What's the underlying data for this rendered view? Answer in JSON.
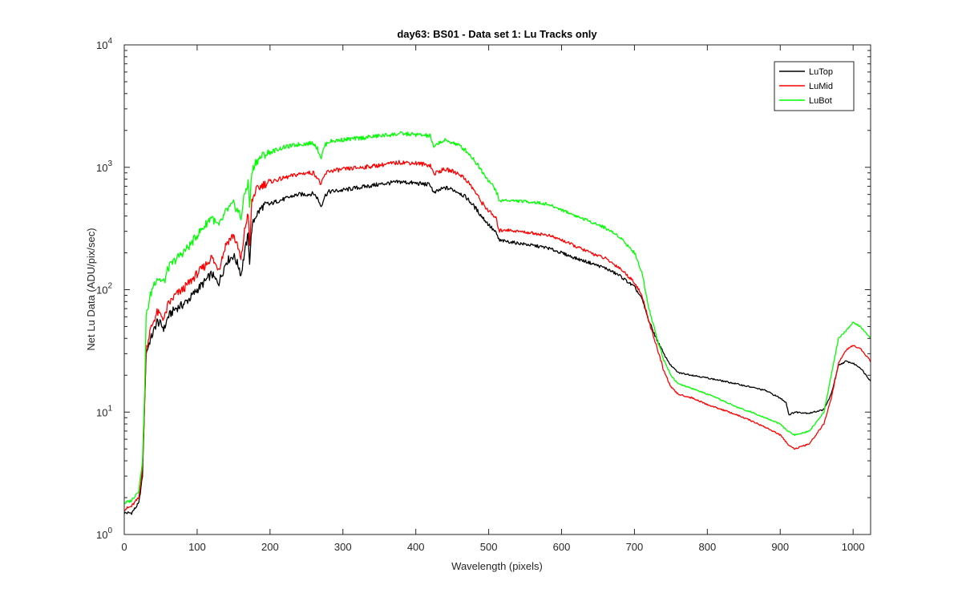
{
  "chart_data": {
    "type": "line",
    "title": "day63: BS01 - Data set 1: Lu Tracks only",
    "xlabel": "Wavelength (pixels)",
    "ylabel": "Net Lu Data (ADU/pix/sec)",
    "xlim": [
      0,
      1024
    ],
    "ylim": [
      1,
      10000
    ],
    "yscale": "log",
    "grid": false,
    "legend_position": "top-right",
    "x_ticks": [
      "0",
      "100",
      "200",
      "300",
      "400",
      "500",
      "600",
      "700",
      "800",
      "900",
      "1000"
    ],
    "y_ticks": [
      {
        "base": "10",
        "exp": "0"
      },
      {
        "base": "10",
        "exp": "1"
      },
      {
        "base": "10",
        "exp": "2"
      },
      {
        "base": "10",
        "exp": "3"
      },
      {
        "base": "10",
        "exp": "4"
      }
    ],
    "series": [
      {
        "name": "LuTop",
        "color": "#000000",
        "points": [
          [
            0,
            1.5
          ],
          [
            10,
            1.5
          ],
          [
            20,
            1.8
          ],
          [
            25,
            3
          ],
          [
            28,
            12
          ],
          [
            30,
            30
          ],
          [
            35,
            38
          ],
          [
            40,
            45
          ],
          [
            45,
            55
          ],
          [
            50,
            52
          ],
          [
            55,
            48
          ],
          [
            60,
            60
          ],
          [
            70,
            70
          ],
          [
            80,
            75
          ],
          [
            90,
            85
          ],
          [
            100,
            100
          ],
          [
            110,
            115
          ],
          [
            120,
            135
          ],
          [
            125,
            120
          ],
          [
            130,
            115
          ],
          [
            140,
            170
          ],
          [
            150,
            190
          ],
          [
            158,
            150
          ],
          [
            160,
            130
          ],
          [
            165,
            200
          ],
          [
            170,
            280
          ],
          [
            172,
            170
          ],
          [
            175,
            320
          ],
          [
            180,
            400
          ],
          [
            190,
            480
          ],
          [
            200,
            500
          ],
          [
            210,
            530
          ],
          [
            220,
            550
          ],
          [
            230,
            580
          ],
          [
            240,
            600
          ],
          [
            250,
            600
          ],
          [
            260,
            610
          ],
          [
            265,
            560
          ],
          [
            270,
            480
          ],
          [
            275,
            580
          ],
          [
            280,
            630
          ],
          [
            300,
            650
          ],
          [
            320,
            680
          ],
          [
            340,
            710
          ],
          [
            360,
            740
          ],
          [
            380,
            760
          ],
          [
            400,
            740
          ],
          [
            420,
            720
          ],
          [
            425,
            610
          ],
          [
            430,
            640
          ],
          [
            440,
            680
          ],
          [
            450,
            660
          ],
          [
            460,
            620
          ],
          [
            470,
            560
          ],
          [
            480,
            480
          ],
          [
            490,
            400
          ],
          [
            500,
            340
          ],
          [
            510,
            290
          ],
          [
            515,
            250
          ],
          [
            520,
            250
          ],
          [
            540,
            240
          ],
          [
            560,
            230
          ],
          [
            580,
            220
          ],
          [
            600,
            200
          ],
          [
            620,
            180
          ],
          [
            640,
            165
          ],
          [
            660,
            150
          ],
          [
            680,
            130
          ],
          [
            700,
            105
          ],
          [
            710,
            85
          ],
          [
            720,
            55
          ],
          [
            730,
            40
          ],
          [
            740,
            30
          ],
          [
            750,
            24
          ],
          [
            760,
            21
          ],
          [
            780,
            20
          ],
          [
            800,
            19
          ],
          [
            820,
            18
          ],
          [
            840,
            17
          ],
          [
            860,
            16
          ],
          [
            880,
            15
          ],
          [
            900,
            13
          ],
          [
            908,
            12
          ],
          [
            912,
            9.5
          ],
          [
            920,
            10
          ],
          [
            940,
            9.8
          ],
          [
            960,
            10.5
          ],
          [
            970,
            14
          ],
          [
            980,
            24
          ],
          [
            990,
            26
          ],
          [
            1000,
            25
          ],
          [
            1010,
            23
          ],
          [
            1024,
            18
          ]
        ]
      },
      {
        "name": "LuMid",
        "color": "#ff0000",
        "points": [
          [
            0,
            1.6
          ],
          [
            10,
            1.7
          ],
          [
            20,
            2.0
          ],
          [
            25,
            3.5
          ],
          [
            28,
            12
          ],
          [
            30,
            32
          ],
          [
            35,
            45
          ],
          [
            40,
            55
          ],
          [
            45,
            65
          ],
          [
            50,
            62
          ],
          [
            55,
            58
          ],
          [
            60,
            75
          ],
          [
            70,
            90
          ],
          [
            80,
            100
          ],
          [
            90,
            115
          ],
          [
            100,
            135
          ],
          [
            110,
            155
          ],
          [
            120,
            185
          ],
          [
            125,
            160
          ],
          [
            130,
            150
          ],
          [
            140,
            240
          ],
          [
            150,
            280
          ],
          [
            158,
            200
          ],
          [
            160,
            170
          ],
          [
            165,
            300
          ],
          [
            170,
            430
          ],
          [
            172,
            220
          ],
          [
            175,
            520
          ],
          [
            180,
            640
          ],
          [
            190,
            720
          ],
          [
            200,
            760
          ],
          [
            210,
            790
          ],
          [
            220,
            820
          ],
          [
            230,
            850
          ],
          [
            240,
            880
          ],
          [
            250,
            900
          ],
          [
            260,
            900
          ],
          [
            265,
            820
          ],
          [
            270,
            720
          ],
          [
            275,
            860
          ],
          [
            280,
            930
          ],
          [
            300,
            960
          ],
          [
            320,
            990
          ],
          [
            340,
            1020
          ],
          [
            360,
            1060
          ],
          [
            380,
            1100
          ],
          [
            400,
            1080
          ],
          [
            420,
            1040
          ],
          [
            425,
            880
          ],
          [
            430,
            920
          ],
          [
            440,
            960
          ],
          [
            450,
            930
          ],
          [
            460,
            880
          ],
          [
            470,
            780
          ],
          [
            480,
            650
          ],
          [
            490,
            520
          ],
          [
            500,
            440
          ],
          [
            510,
            380
          ],
          [
            515,
            300
          ],
          [
            520,
            310
          ],
          [
            540,
            300
          ],
          [
            560,
            290
          ],
          [
            580,
            280
          ],
          [
            600,
            255
          ],
          [
            620,
            225
          ],
          [
            640,
            200
          ],
          [
            660,
            180
          ],
          [
            680,
            150
          ],
          [
            700,
            115
          ],
          [
            710,
            90
          ],
          [
            720,
            55
          ],
          [
            730,
            35
          ],
          [
            740,
            22
          ],
          [
            750,
            16
          ],
          [
            760,
            14
          ],
          [
            780,
            13
          ],
          [
            800,
            11.5
          ],
          [
            820,
            10.5
          ],
          [
            840,
            9.5
          ],
          [
            860,
            8.5
          ],
          [
            880,
            7.5
          ],
          [
            900,
            6.5
          ],
          [
            910,
            5.5
          ],
          [
            920,
            5.0
          ],
          [
            940,
            5.5
          ],
          [
            960,
            8
          ],
          [
            970,
            13
          ],
          [
            980,
            25
          ],
          [
            990,
            32
          ],
          [
            1000,
            35
          ],
          [
            1010,
            33
          ],
          [
            1024,
            26
          ]
        ]
      },
      {
        "name": "LuBot",
        "color": "#00ff00",
        "points": [
          [
            0,
            1.8
          ],
          [
            10,
            1.9
          ],
          [
            20,
            2.3
          ],
          [
            25,
            4
          ],
          [
            28,
            15
          ],
          [
            30,
            60
          ],
          [
            35,
            85
          ],
          [
            40,
            110
          ],
          [
            45,
            125
          ],
          [
            50,
            120
          ],
          [
            55,
            115
          ],
          [
            60,
            150
          ],
          [
            70,
            175
          ],
          [
            80,
            200
          ],
          [
            90,
            230
          ],
          [
            100,
            280
          ],
          [
            110,
            330
          ],
          [
            120,
            400
          ],
          [
            125,
            350
          ],
          [
            130,
            330
          ],
          [
            140,
            440
          ],
          [
            150,
            500
          ],
          [
            158,
            420
          ],
          [
            160,
            380
          ],
          [
            165,
            600
          ],
          [
            170,
            750
          ],
          [
            172,
            480
          ],
          [
            175,
            900
          ],
          [
            180,
            1100
          ],
          [
            190,
            1250
          ],
          [
            200,
            1320
          ],
          [
            210,
            1400
          ],
          [
            220,
            1460
          ],
          [
            230,
            1500
          ],
          [
            240,
            1540
          ],
          [
            250,
            1560
          ],
          [
            260,
            1580
          ],
          [
            265,
            1420
          ],
          [
            270,
            1200
          ],
          [
            275,
            1500
          ],
          [
            280,
            1620
          ],
          [
            300,
            1680
          ],
          [
            320,
            1720
          ],
          [
            340,
            1780
          ],
          [
            360,
            1830
          ],
          [
            380,
            1880
          ],
          [
            400,
            1850
          ],
          [
            420,
            1800
          ],
          [
            425,
            1420
          ],
          [
            430,
            1580
          ],
          [
            440,
            1650
          ],
          [
            450,
            1600
          ],
          [
            460,
            1500
          ],
          [
            470,
            1350
          ],
          [
            480,
            1150
          ],
          [
            490,
            950
          ],
          [
            500,
            780
          ],
          [
            510,
            650
          ],
          [
            515,
            520
          ],
          [
            520,
            540
          ],
          [
            540,
            530
          ],
          [
            560,
            520
          ],
          [
            580,
            500
          ],
          [
            600,
            450
          ],
          [
            620,
            400
          ],
          [
            640,
            360
          ],
          [
            660,
            320
          ],
          [
            680,
            270
          ],
          [
            700,
            200
          ],
          [
            710,
            140
          ],
          [
            720,
            70
          ],
          [
            730,
            42
          ],
          [
            740,
            27
          ],
          [
            750,
            20
          ],
          [
            760,
            17
          ],
          [
            780,
            15.5
          ],
          [
            800,
            14
          ],
          [
            820,
            12.5
          ],
          [
            840,
            11
          ],
          [
            860,
            10
          ],
          [
            880,
            9
          ],
          [
            900,
            8
          ],
          [
            910,
            7
          ],
          [
            920,
            6.5
          ],
          [
            940,
            7
          ],
          [
            960,
            10
          ],
          [
            970,
            20
          ],
          [
            980,
            40
          ],
          [
            990,
            46
          ],
          [
            1000,
            54
          ],
          [
            1010,
            50
          ],
          [
            1024,
            40
          ]
        ]
      }
    ]
  }
}
